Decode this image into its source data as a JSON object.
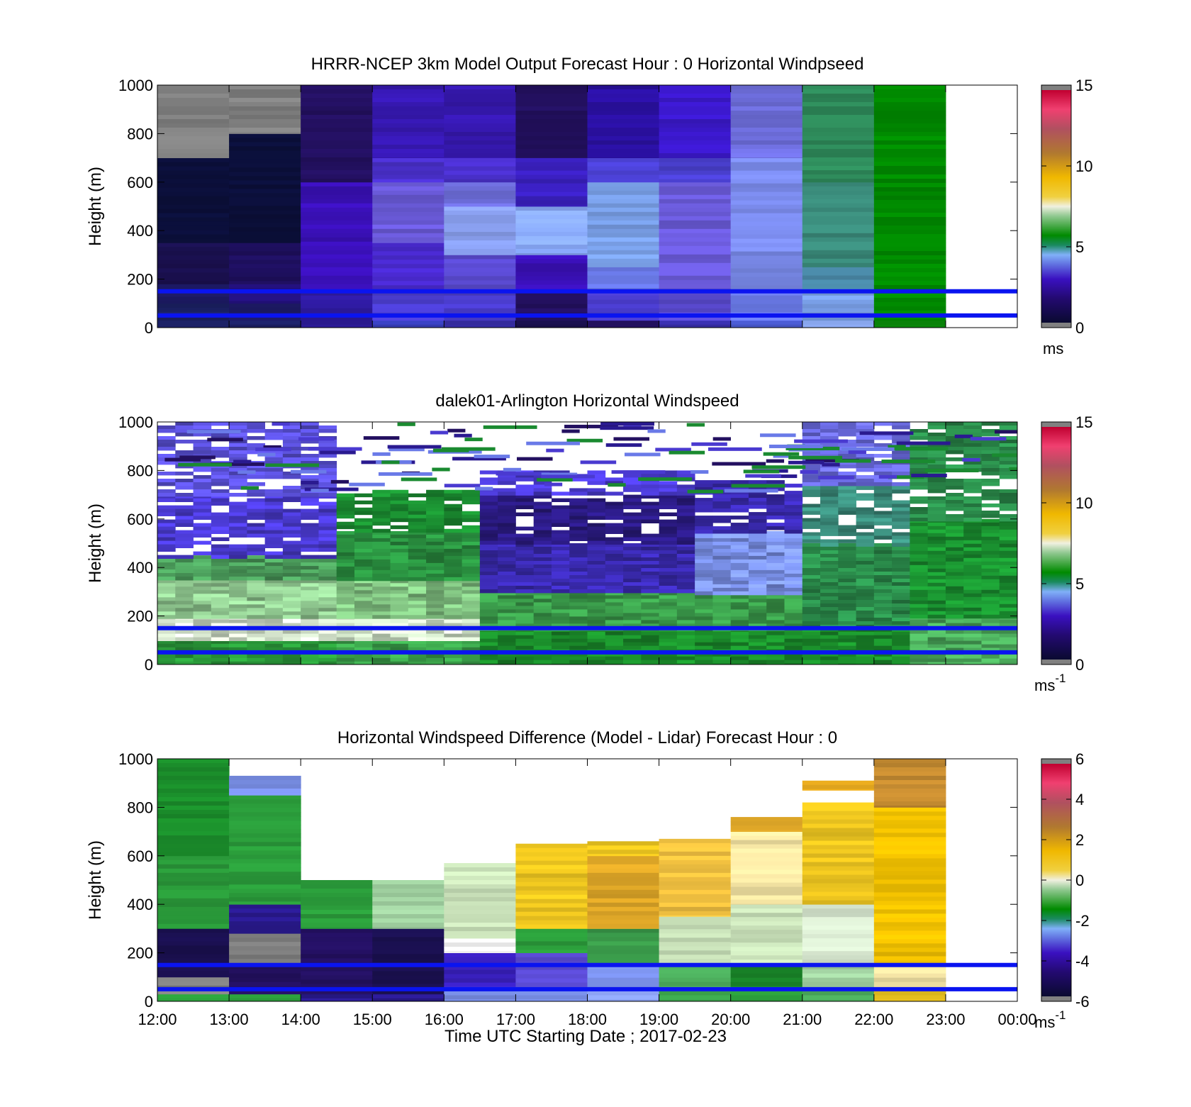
{
  "xaxis": {
    "label": "Time UTC  Starting Date ; 2017-02-23",
    "ticks": [
      "12:00",
      "13:00",
      "14:00",
      "15:00",
      "16:00",
      "17:00",
      "18:00",
      "19:00",
      "20:00",
      "21:00",
      "22:00",
      "23:00",
      "00:00"
    ]
  },
  "chart_data": [
    {
      "type": "heatmap",
      "title": "HRRR-NCEP 3km Model Output   Forecast Hour : 0 Horizontal Windpseed",
      "ylabel": "Height (m)",
      "ylim": [
        0,
        1000
      ],
      "yticks": [
        0,
        200,
        400,
        600,
        800,
        1000
      ],
      "x_hours": [
        12,
        24
      ],
      "colorbar": {
        "min": 0,
        "max": 15,
        "ticks": [
          0,
          5,
          10,
          15
        ],
        "unit": "ms",
        "unit_sup": ""
      },
      "overlay_lines_m": [
        150,
        50
      ],
      "cells": [
        [
          12,
          13,
          0,
          30,
          "#1a1f5e"
        ],
        [
          12,
          13,
          30,
          100,
          "#1b2063"
        ],
        [
          12,
          13,
          100,
          180,
          "#1d1a66"
        ],
        [
          12,
          13,
          180,
          350,
          "#1a1050"
        ],
        [
          12,
          13,
          350,
          700,
          "#0b0f3a"
        ],
        [
          12,
          13,
          700,
          1000,
          "#808080"
        ],
        [
          13,
          14,
          0,
          30,
          "#1b2063"
        ],
        [
          13,
          14,
          30,
          100,
          "#1d1a66"
        ],
        [
          13,
          14,
          100,
          180,
          "#22107a"
        ],
        [
          13,
          14,
          180,
          350,
          "#1e0f5e"
        ],
        [
          13,
          14,
          350,
          800,
          "#0b0f3a"
        ],
        [
          13,
          14,
          800,
          1000,
          "#808080"
        ],
        [
          14,
          15,
          0,
          30,
          "#2a1a90"
        ],
        [
          14,
          15,
          30,
          150,
          "#2e1aa0"
        ],
        [
          14,
          15,
          150,
          600,
          "#3a10b8"
        ],
        [
          14,
          15,
          600,
          1000,
          "#231060"
        ],
        [
          15,
          16,
          0,
          30,
          "#3840c0"
        ],
        [
          15,
          16,
          30,
          150,
          "#4a3ccc"
        ],
        [
          15,
          16,
          150,
          350,
          "#4a2ad0"
        ],
        [
          15,
          16,
          350,
          600,
          "#6a5ad8"
        ],
        [
          15,
          16,
          600,
          700,
          "#4a30cc"
        ],
        [
          15,
          16,
          700,
          1000,
          "#3618b0"
        ],
        [
          16,
          17,
          0,
          30,
          "#3a30b0"
        ],
        [
          16,
          17,
          30,
          150,
          "#4a3ccc"
        ],
        [
          16,
          17,
          150,
          300,
          "#5a4ad0"
        ],
        [
          16,
          17,
          300,
          500,
          "#8aa0f0"
        ],
        [
          16,
          17,
          500,
          600,
          "#7070e0"
        ],
        [
          16,
          17,
          600,
          700,
          "#4a30cc"
        ],
        [
          16,
          17,
          700,
          1000,
          "#3618b0"
        ],
        [
          17,
          18,
          0,
          30,
          "#1a1050"
        ],
        [
          17,
          18,
          30,
          150,
          "#231060"
        ],
        [
          17,
          18,
          150,
          300,
          "#3a10b8"
        ],
        [
          17,
          18,
          300,
          500,
          "#88a8f8"
        ],
        [
          17,
          18,
          500,
          700,
          "#3a20c0"
        ],
        [
          17,
          18,
          700,
          1000,
          "#231060"
        ],
        [
          18,
          19,
          0,
          30,
          "#231060"
        ],
        [
          18,
          19,
          30,
          150,
          "#4a3ccc"
        ],
        [
          18,
          19,
          150,
          250,
          "#6a7ae8"
        ],
        [
          18,
          19,
          250,
          600,
          "#7aa0e8"
        ],
        [
          18,
          19,
          600,
          700,
          "#4a40d0"
        ],
        [
          18,
          19,
          700,
          1000,
          "#2a10a0"
        ],
        [
          19,
          20,
          0,
          30,
          "#3a30b0"
        ],
        [
          19,
          20,
          30,
          150,
          "#5a4ad0"
        ],
        [
          19,
          20,
          150,
          600,
          "#6a5ad8"
        ],
        [
          19,
          20,
          600,
          700,
          "#4a40d0"
        ],
        [
          19,
          20,
          700,
          1000,
          "#3a18c8"
        ],
        [
          20,
          21,
          0,
          30,
          "#4a5ad0"
        ],
        [
          20,
          21,
          30,
          150,
          "#6a7ae8"
        ],
        [
          20,
          21,
          150,
          700,
          "#7a8aea"
        ],
        [
          20,
          21,
          700,
          1000,
          "#7070e0"
        ],
        [
          21,
          22,
          0,
          30,
          "#8aa8f0"
        ],
        [
          21,
          22,
          30,
          150,
          "#7aa0e8"
        ],
        [
          21,
          22,
          150,
          250,
          "#4a8aa8"
        ],
        [
          21,
          22,
          250,
          600,
          "#3a8a7a"
        ],
        [
          21,
          22,
          600,
          1000,
          "#2e8a5a"
        ],
        [
          22,
          23,
          0,
          30,
          "#0a8a0a"
        ],
        [
          22,
          23,
          30,
          1000,
          "#008a00"
        ]
      ]
    },
    {
      "type": "heatmap",
      "title": "dalek01-Arlington  Horizontal Windspeed",
      "ylabel": "Height (m)",
      "ylim": [
        0,
        1000
      ],
      "yticks": [
        0,
        200,
        400,
        600,
        800,
        1000
      ],
      "x_hours": [
        12,
        24
      ],
      "colorbar": {
        "min": 0,
        "max": 15,
        "ticks": [
          0,
          5,
          10,
          15
        ],
        "unit": "ms",
        "unit_sup": "-1"
      },
      "overlay_lines_m": [
        150,
        50
      ],
      "bands": [
        [
          12.0,
          14.5,
          0,
          100,
          "#2a9a3a"
        ],
        [
          12.0,
          14.5,
          100,
          200,
          "#d8e8d0"
        ],
        [
          12.0,
          14.5,
          200,
          350,
          "#90c890"
        ],
        [
          12.0,
          14.5,
          350,
          450,
          "#4a9a5a"
        ],
        [
          12.0,
          14.5,
          450,
          700,
          "#4a3ad0"
        ],
        [
          12.0,
          14.5,
          700,
          1000,
          "#5a50d8"
        ],
        [
          14.5,
          16.5,
          0,
          100,
          "#3aa04a"
        ],
        [
          14.5,
          16.5,
          100,
          200,
          "#d0e4c8"
        ],
        [
          14.5,
          16.5,
          200,
          350,
          "#80c080"
        ],
        [
          14.5,
          16.5,
          350,
          550,
          "#2a9040"
        ],
        [
          14.5,
          16.5,
          550,
          720,
          "#1a8a30"
        ],
        [
          16.5,
          19.5,
          0,
          150,
          "#1a8a2a"
        ],
        [
          16.5,
          19.5,
          150,
          300,
          "#3a9a4a"
        ],
        [
          16.5,
          19.5,
          300,
          500,
          "#3a2ab0"
        ],
        [
          16.5,
          19.5,
          500,
          700,
          "#2a1a80"
        ],
        [
          16.5,
          19.5,
          700,
          800,
          "#4a3ad0"
        ],
        [
          19.5,
          21.0,
          0,
          150,
          "#1a8a2a"
        ],
        [
          19.5,
          21.0,
          150,
          300,
          "#3a9a4a"
        ],
        [
          19.5,
          21.0,
          300,
          550,
          "#7a90e8"
        ],
        [
          19.5,
          21.0,
          550,
          760,
          "#3a2ab0"
        ],
        [
          21.0,
          22.5,
          0,
          150,
          "#1a8a2a"
        ],
        [
          21.0,
          22.5,
          150,
          500,
          "#2a8a4a"
        ],
        [
          21.0,
          22.5,
          500,
          750,
          "#3a8a7a"
        ],
        [
          21.0,
          22.5,
          750,
          1000,
          "#6a6ae0"
        ],
        [
          22.5,
          23.9,
          0,
          200,
          "#4aa85a"
        ],
        [
          22.5,
          23.9,
          200,
          600,
          "#1a9030"
        ],
        [
          22.5,
          23.9,
          600,
          1000,
          "#2a8a4a"
        ]
      ],
      "band_top_limits": [
        [
          14.5,
          1000,
          0.3
        ],
        [
          16.5,
          780,
          0.5
        ],
        [
          19.5,
          870,
          0.6
        ],
        [
          21.0,
          880,
          0.5
        ],
        [
          22.5,
          1000,
          0.2
        ]
      ]
    },
    {
      "type": "heatmap",
      "title": "Horizontal Windspeed Difference (Model - Lidar) Forecast Hour : 0",
      "ylabel": "Height (m)",
      "ylim": [
        0,
        1000
      ],
      "yticks": [
        0,
        200,
        400,
        600,
        800,
        1000
      ],
      "x_hours": [
        12,
        24
      ],
      "colorbar": {
        "min": -6,
        "max": 6,
        "ticks": [
          -6,
          -4,
          -2,
          0,
          2,
          4,
          6
        ],
        "unit": "ms",
        "unit_sup": "-1"
      },
      "overlay_lines_m": [
        150,
        50
      ],
      "cells": [
        [
          12,
          13,
          0,
          30,
          "#2a9a3a"
        ],
        [
          12,
          13,
          30,
          100,
          "#808080"
        ],
        [
          12,
          13,
          100,
          300,
          "#1a1050"
        ],
        [
          12,
          13,
          300,
          600,
          "#2a9a3a"
        ],
        [
          12,
          13,
          600,
          1000,
          "#1a8a2a"
        ],
        [
          13,
          14,
          0,
          30,
          "#2a9a3a"
        ],
        [
          13,
          14,
          30,
          150,
          "#231060"
        ],
        [
          13,
          14,
          150,
          280,
          "#808080"
        ],
        [
          13,
          14,
          280,
          400,
          "#2a1a90"
        ],
        [
          13,
          14,
          400,
          850,
          "#2a9a3a"
        ],
        [
          13,
          14,
          850,
          930,
          "#7a90e8"
        ],
        [
          14,
          15,
          0,
          30,
          "#2a1a90"
        ],
        [
          14,
          15,
          30,
          300,
          "#231060"
        ],
        [
          14,
          15,
          300,
          500,
          "#2a9a3a"
        ],
        [
          15,
          16,
          0,
          30,
          "#2a1a90"
        ],
        [
          15,
          16,
          30,
          300,
          "#1a1050"
        ],
        [
          15,
          16,
          300,
          500,
          "#a0d0a0"
        ],
        [
          16,
          17,
          0,
          60,
          "#7a90e8"
        ],
        [
          16,
          17,
          60,
          200,
          "#3a20c0"
        ],
        [
          16,
          17,
          200,
          260,
          "#ffffff"
        ],
        [
          16,
          17,
          260,
          570,
          "#c8e0b8"
        ],
        [
          17,
          18,
          0,
          60,
          "#7a90e8"
        ],
        [
          17,
          18,
          60,
          200,
          "#5a4ad0"
        ],
        [
          17,
          18,
          200,
          300,
          "#2a9a3a"
        ],
        [
          17,
          18,
          300,
          650,
          "#f0c820"
        ],
        [
          18,
          19,
          0,
          60,
          "#8aa0f0"
        ],
        [
          18,
          19,
          60,
          150,
          "#7a90e8"
        ],
        [
          18,
          19,
          150,
          300,
          "#3a9a4a"
        ],
        [
          18,
          19,
          300,
          600,
          "#e0a828"
        ],
        [
          18,
          19,
          600,
          660,
          "#f0c820"
        ],
        [
          19,
          20,
          0,
          60,
          "#3aa04a"
        ],
        [
          19,
          20,
          60,
          150,
          "#4aa85a"
        ],
        [
          19,
          20,
          150,
          350,
          "#c8e0b8"
        ],
        [
          19,
          20,
          350,
          670,
          "#f0c040"
        ],
        [
          20,
          21,
          0,
          60,
          "#2a9a3a"
        ],
        [
          20,
          21,
          60,
          150,
          "#1a8a2a"
        ],
        [
          20,
          21,
          150,
          400,
          "#c8e0b8"
        ],
        [
          20,
          21,
          400,
          700,
          "#f0e0a0"
        ],
        [
          20,
          21,
          700,
          760,
          "#e0a828"
        ],
        [
          21,
          22,
          0,
          60,
          "#4aa85a"
        ],
        [
          21,
          22,
          60,
          150,
          "#a0d0a0"
        ],
        [
          21,
          22,
          150,
          400,
          "#d8e8d0"
        ],
        [
          21,
          22,
          400,
          820,
          "#f0c820"
        ],
        [
          21,
          22,
          870,
          910,
          "#f0b020"
        ],
        [
          22,
          23,
          0,
          60,
          "#f0c820"
        ],
        [
          22,
          23,
          60,
          150,
          "#f8e8a8"
        ],
        [
          22,
          23,
          150,
          800,
          "#f0c000"
        ],
        [
          22,
          23,
          800,
          1000,
          "#c08830"
        ]
      ]
    }
  ]
}
